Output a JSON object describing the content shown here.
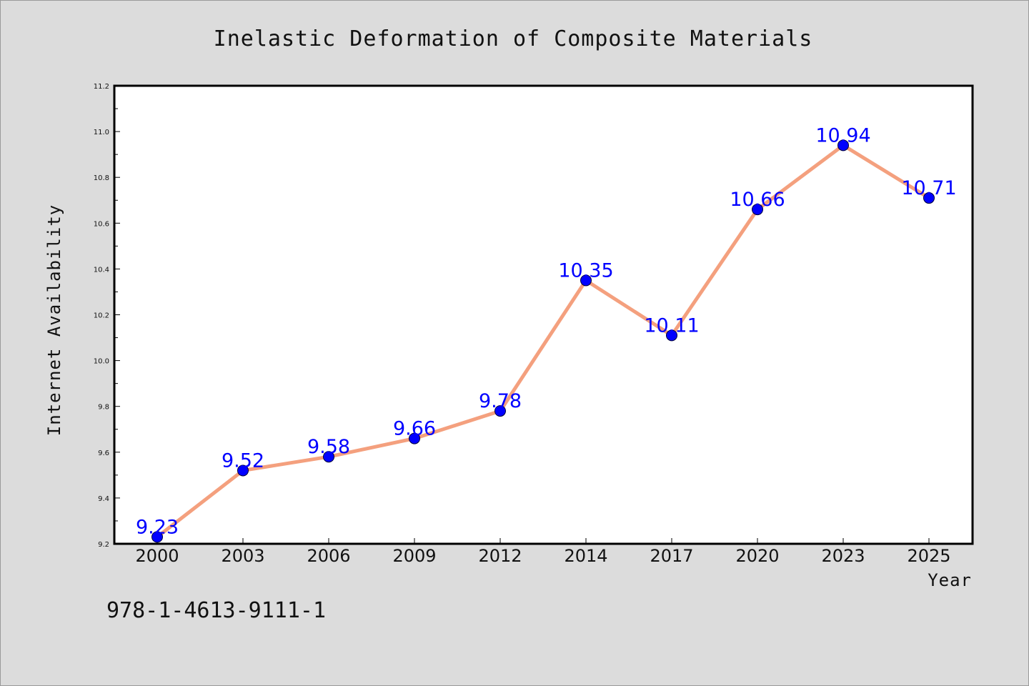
{
  "chart_data": {
    "type": "line",
    "title": "Inelastic Deformation of Composite Materials",
    "xlabel": "Year",
    "ylabel": "Internet Availability",
    "categories": [
      "2000",
      "2003",
      "2006",
      "2009",
      "2012",
      "2014",
      "2017",
      "2020",
      "2023",
      "2025"
    ],
    "values": [
      9.23,
      9.52,
      9.58,
      9.66,
      9.78,
      10.35,
      10.11,
      10.66,
      10.94,
      10.71
    ],
    "data_labels": [
      "9.23",
      "9.52",
      "9.58",
      "9.66",
      "9.78",
      "10.35",
      "10.11",
      "10.66",
      "10.94",
      "10.71"
    ],
    "ylim": [
      9.2,
      11.2
    ],
    "yticks": [
      "9.2",
      "9.4",
      "9.6",
      "9.8",
      "10.0",
      "10.2",
      "10.4",
      "10.6",
      "10.8",
      "11.0",
      "11.2"
    ],
    "line_color": "#f4a07e",
    "marker_color": "#0000ff",
    "label_color": "#0000ff",
    "grid": false,
    "legend": "none"
  },
  "footer": {
    "isbn": "978-1-4613-9111-1"
  }
}
